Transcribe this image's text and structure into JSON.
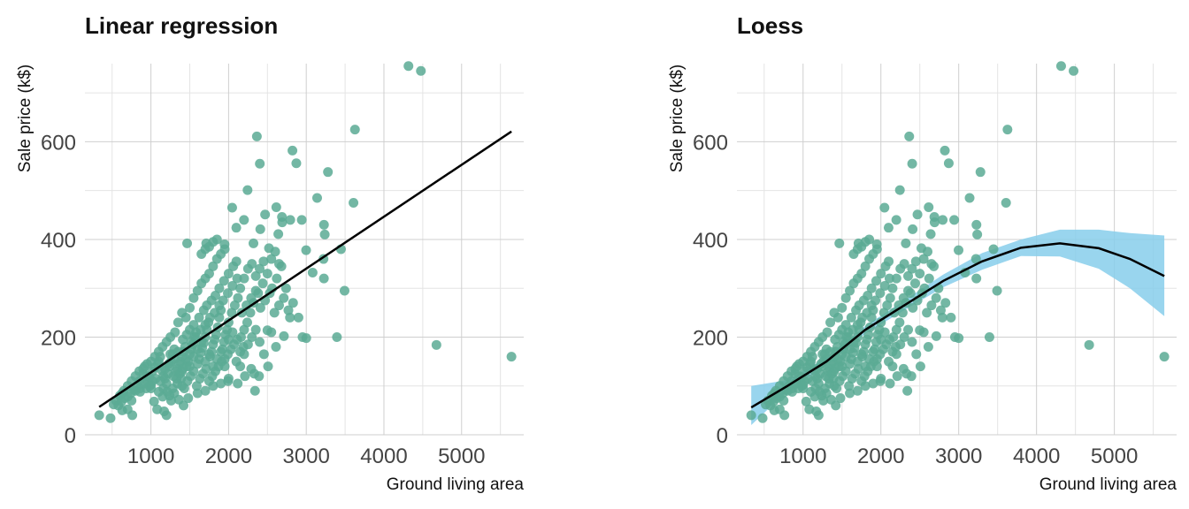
{
  "colors": {
    "points": "#5aaa94",
    "line": "#000000",
    "band": "#87ceeb",
    "grid": "#cfcfcf"
  },
  "chart_data": [
    {
      "type": "scatter",
      "title": "Linear regression",
      "xlabel": "Ground living area",
      "ylabel": "Sale price (k$)",
      "xlim": [
        150,
        5800
      ],
      "ylim": [
        0,
        760
      ],
      "xticks": [
        1000,
        2000,
        3000,
        4000,
        5000
      ],
      "yticks": [
        0,
        200,
        400,
        600
      ],
      "grid": true,
      "fit": {
        "method": "linear",
        "points": [
          [
            334,
            57
          ],
          [
            5642,
            621
          ]
        ]
      }
    },
    {
      "type": "scatter",
      "title": "Loess",
      "xlabel": "Ground living area",
      "ylabel": "Sale price (k$)",
      "xlim": [
        150,
        5800
      ],
      "ylim": [
        0,
        760
      ],
      "xticks": [
        1000,
        2000,
        3000,
        4000,
        5000
      ],
      "yticks": [
        0,
        200,
        400,
        600
      ],
      "grid": true,
      "fit": {
        "method": "loess",
        "points": [
          [
            334,
            56
          ],
          [
            800,
            100
          ],
          [
            1300,
            150
          ],
          [
            1800,
            215
          ],
          [
            2300,
            265
          ],
          [
            2800,
            315
          ],
          [
            3300,
            355
          ],
          [
            3800,
            383
          ],
          [
            4300,
            392
          ],
          [
            4800,
            382
          ],
          [
            5200,
            360
          ],
          [
            5642,
            325
          ]
        ],
        "band_upper": [
          [
            334,
            100
          ],
          [
            800,
            112
          ],
          [
            1300,
            158
          ],
          [
            1800,
            223
          ],
          [
            2300,
            275
          ],
          [
            2800,
            328
          ],
          [
            3300,
            372
          ],
          [
            3800,
            400
          ],
          [
            4300,
            420
          ],
          [
            4800,
            420
          ],
          [
            5200,
            413
          ],
          [
            5642,
            408
          ]
        ],
        "band_lower": [
          [
            334,
            20
          ],
          [
            800,
            90
          ],
          [
            1300,
            142
          ],
          [
            1800,
            207
          ],
          [
            2300,
            255
          ],
          [
            2800,
            302
          ],
          [
            3300,
            338
          ],
          [
            3800,
            366
          ],
          [
            4300,
            365
          ],
          [
            4800,
            340
          ],
          [
            5200,
            300
          ],
          [
            5642,
            243
          ]
        ]
      }
    }
  ],
  "points": [
    [
      4316,
      755
    ],
    [
      4476,
      745
    ],
    [
      3627,
      625
    ],
    [
      2364,
      611
    ],
    [
      2822,
      582
    ],
    [
      3279,
      538
    ],
    [
      2872,
      556
    ],
    [
      2402,
      555
    ],
    [
      3140,
      485
    ],
    [
      3608,
      475
    ],
    [
      2244,
      501
    ],
    [
      2614,
      466
    ],
    [
      2046,
      465
    ],
    [
      2687,
      446
    ],
    [
      2690,
      435
    ],
    [
      2794,
      440
    ],
    [
      2942,
      440
    ],
    [
      3228,
      430
    ],
    [
      2408,
      421
    ],
    [
      2470,
      451
    ],
    [
      2198,
      440
    ],
    [
      1948,
      390
    ],
    [
      1466,
      392
    ],
    [
      1712,
      392
    ],
    [
      2640,
      411
    ],
    [
      3238,
      410
    ],
    [
      2099,
      424
    ],
    [
      2320,
      392
    ],
    [
      2520,
      382
    ],
    [
      3447,
      380
    ],
    [
      3222,
      360
    ],
    [
      2998,
      378
    ],
    [
      3082,
      332
    ],
    [
      3227,
      320
    ],
    [
      3493,
      295
    ],
    [
      2900,
      240
    ],
    [
      2952,
      200
    ],
    [
      3395,
      200
    ],
    [
      3000,
      198
    ],
    [
      4676,
      184
    ],
    [
      5642,
      160
    ],
    [
      2790,
      240
    ],
    [
      2500,
      214
    ],
    [
      2712,
      202
    ],
    [
      2610,
      180
    ],
    [
      2392,
      120
    ],
    [
      2508,
      140
    ],
    [
      2330,
      125
    ],
    [
      1993,
      110
    ],
    [
      2117,
      105
    ],
    [
      2291,
      135
    ],
    [
      2210,
      120
    ],
    [
      2340,
      90
    ],
    [
      2455,
      165
    ],
    [
      334,
      40
    ],
    [
      480,
      34
    ],
    [
      520,
      62
    ],
    [
      630,
      50
    ],
    [
      700,
      52
    ],
    [
      750,
      70
    ],
    [
      630,
      85
    ],
    [
      760,
      40
    ],
    [
      860,
      95
    ],
    [
      1000,
      95
    ],
    [
      1000,
      102
    ],
    [
      1040,
      68
    ],
    [
      1200,
      40
    ],
    [
      1170,
      48
    ],
    [
      1080,
      52
    ],
    [
      1300,
      85
    ],
    [
      1400,
      100
    ],
    [
      800,
      90
    ],
    [
      850,
      110
    ],
    [
      900,
      125
    ],
    [
      920,
      140
    ],
    [
      950,
      120
    ],
    [
      960,
      108
    ],
    [
      980,
      118
    ],
    [
      1020,
      130
    ],
    [
      1050,
      138
    ],
    [
      1090,
      145
    ],
    [
      1100,
      150
    ],
    [
      1120,
      160
    ],
    [
      1140,
      132
    ],
    [
      1160,
      120
    ],
    [
      1180,
      115
    ],
    [
      1200,
      105
    ],
    [
      1220,
      125
    ],
    [
      1240,
      140
    ],
    [
      1260,
      150
    ],
    [
      1280,
      165
    ],
    [
      1300,
      175
    ],
    [
      1320,
      130
    ],
    [
      1340,
      135
    ],
    [
      1360,
      145
    ],
    [
      1380,
      150
    ],
    [
      1400,
      160
    ],
    [
      1420,
      170
    ],
    [
      1440,
      180
    ],
    [
      1460,
      140
    ],
    [
      1480,
      150
    ],
    [
      1500,
      165
    ],
    [
      1520,
      175
    ],
    [
      1540,
      185
    ],
    [
      1560,
      200
    ],
    [
      1580,
      210
    ],
    [
      1600,
      145
    ],
    [
      1620,
      155
    ],
    [
      1640,
      168
    ],
    [
      1660,
      178
    ],
    [
      1680,
      188
    ],
    [
      1700,
      200
    ],
    [
      1720,
      215
    ],
    [
      1740,
      230
    ],
    [
      1760,
      160
    ],
    [
      1780,
      170
    ],
    [
      1800,
      185
    ],
    [
      1820,
      195
    ],
    [
      1840,
      205
    ],
    [
      1860,
      220
    ],
    [
      1880,
      240
    ],
    [
      1900,
      255
    ],
    [
      1920,
      175
    ],
    [
      1940,
      190
    ],
    [
      1960,
      205
    ],
    [
      1980,
      215
    ],
    [
      2000,
      230
    ],
    [
      2040,
      250
    ],
    [
      2080,
      265
    ],
    [
      2120,
      280
    ],
    [
      2160,
      200
    ],
    [
      2200,
      215
    ],
    [
      2240,
      230
    ],
    [
      2280,
      250
    ],
    [
      2320,
      270
    ],
    [
      2380,
      290
    ],
    [
      2440,
      310
    ],
    [
      2500,
      330
    ],
    [
      2560,
      300
    ],
    [
      2620,
      320
    ],
    [
      2680,
      345
    ],
    [
      2740,
      300
    ],
    [
      1310,
      210
    ],
    [
      1350,
      230
    ],
    [
      1400,
      250
    ],
    [
      1450,
      240
    ],
    [
      1500,
      260
    ],
    [
      1550,
      280
    ],
    [
      1600,
      295
    ],
    [
      1650,
      310
    ],
    [
      1700,
      320
    ],
    [
      1750,
      330
    ],
    [
      1800,
      345
    ],
    [
      1850,
      360
    ],
    [
      1900,
      370
    ],
    [
      1950,
      380
    ],
    [
      1650,
      370
    ],
    [
      1700,
      380
    ],
    [
      1750,
      385
    ],
    [
      1800,
      395
    ],
    [
      1850,
      400
    ],
    [
      1250,
      200
    ],
    [
      1200,
      190
    ],
    [
      1150,
      180
    ],
    [
      1100,
      170
    ],
    [
      1050,
      160
    ],
    [
      1000,
      150
    ],
    [
      950,
      145
    ],
    [
      900,
      135
    ],
    [
      850,
      130
    ],
    [
      800,
      120
    ],
    [
      750,
      110
    ],
    [
      700,
      100
    ],
    [
      650,
      90
    ],
    [
      600,
      80
    ],
    [
      550,
      70
    ],
    [
      1280,
      95
    ],
    [
      1340,
      105
    ],
    [
      1390,
      115
    ],
    [
      1430,
      95
    ],
    [
      1470,
      110
    ],
    [
      1510,
      120
    ],
    [
      1550,
      130
    ],
    [
      1590,
      100
    ],
    [
      1630,
      115
    ],
    [
      1670,
      125
    ],
    [
      1710,
      135
    ],
    [
      1750,
      110
    ],
    [
      1790,
      120
    ],
    [
      1830,
      130
    ],
    [
      1870,
      140
    ],
    [
      1910,
      150
    ],
    [
      1950,
      155
    ],
    [
      1990,
      165
    ],
    [
      2030,
      175
    ],
    [
      2070,
      185
    ],
    [
      2110,
      195
    ],
    [
      2150,
      170
    ],
    [
      2190,
      180
    ],
    [
      1420,
      60
    ],
    [
      1480,
      75
    ],
    [
      1600,
      85
    ],
    [
      1700,
      90
    ],
    [
      1800,
      100
    ],
    [
      1900,
      105
    ],
    [
      2000,
      115
    ],
    [
      1360,
      72
    ],
    [
      1260,
      70
    ],
    [
      1500,
      215
    ],
    [
      1550,
      225
    ],
    [
      1620,
      240
    ],
    [
      1680,
      255
    ],
    [
      1720,
      265
    ],
    [
      1780,
      275
    ],
    [
      1830,
      285
    ],
    [
      1880,
      300
    ],
    [
      1940,
      315
    ],
    [
      2000,
      330
    ],
    [
      2060,
      345
    ],
    [
      2100,
      355
    ],
    [
      2150,
      300
    ],
    [
      2200,
      320
    ],
    [
      2250,
      340
    ],
    [
      2300,
      350
    ],
    [
      2350,
      325
    ],
    [
      2400,
      340
    ],
    [
      2450,
      355
    ],
    [
      2550,
      360
    ],
    [
      2600,
      375
    ],
    [
      2650,
      350
    ],
    [
      1410,
      195
    ],
    [
      1460,
      205
    ],
    [
      1520,
      190
    ],
    [
      1580,
      200
    ],
    [
      1640,
      215
    ],
    [
      1700,
      225
    ],
    [
      1760,
      240
    ],
    [
      1820,
      250
    ],
    [
      1880,
      265
    ],
    [
      1930,
      275
    ],
    [
      1990,
      290
    ],
    [
      2050,
      305
    ],
    [
      2110,
      320
    ],
    [
      2170,
      250
    ],
    [
      2230,
      265
    ],
    [
      2290,
      280
    ],
    [
      2350,
      295
    ],
    [
      2410,
      260
    ],
    [
      2470,
      275
    ],
    [
      2530,
      290
    ],
    [
      2590,
      250
    ],
    [
      2650,
      265
    ],
    [
      2710,
      280
    ],
    [
      2770,
      255
    ],
    [
      2830,
      270
    ],
    [
      2550,
      210
    ],
    [
      1250,
      165
    ],
    [
      1300,
      155
    ],
    [
      1350,
      170
    ],
    [
      1400,
      130
    ],
    [
      1450,
      155
    ],
    [
      1500,
      140
    ],
    [
      1550,
      160
    ],
    [
      1600,
      175
    ],
    [
      1650,
      190
    ],
    [
      1700,
      150
    ],
    [
      1750,
      165
    ],
    [
      1800,
      140
    ],
    [
      1850,
      155
    ],
    [
      1900,
      170
    ],
    [
      1950,
      140
    ],
    [
      2000,
      195
    ],
    [
      2050,
      210
    ],
    [
      2100,
      150
    ],
    [
      2150,
      140
    ],
    [
      2200,
      165
    ],
    [
      2250,
      185
    ],
    [
      2300,
      200
    ],
    [
      2350,
      215
    ],
    [
      2400,
      190
    ],
    [
      1120,
      110
    ],
    [
      1180,
      135
    ],
    [
      1230,
      145
    ],
    [
      1290,
      120
    ],
    [
      1330,
      115
    ],
    [
      1370,
      125
    ],
    [
      1410,
      135
    ],
    [
      1060,
      115
    ],
    [
      1020,
      110
    ],
    [
      980,
      100
    ],
    [
      940,
      95
    ],
    [
      900,
      105
    ],
    [
      860,
      88
    ],
    [
      820,
      100
    ],
    [
      780,
      92
    ],
    [
      740,
      85
    ],
    [
      700,
      78
    ],
    [
      660,
      75
    ],
    [
      620,
      68
    ],
    [
      580,
      60
    ],
    [
      1160,
      95
    ],
    [
      1210,
      88
    ],
    [
      1240,
      80
    ],
    [
      1150,
      78
    ],
    [
      1100,
      88
    ]
  ]
}
